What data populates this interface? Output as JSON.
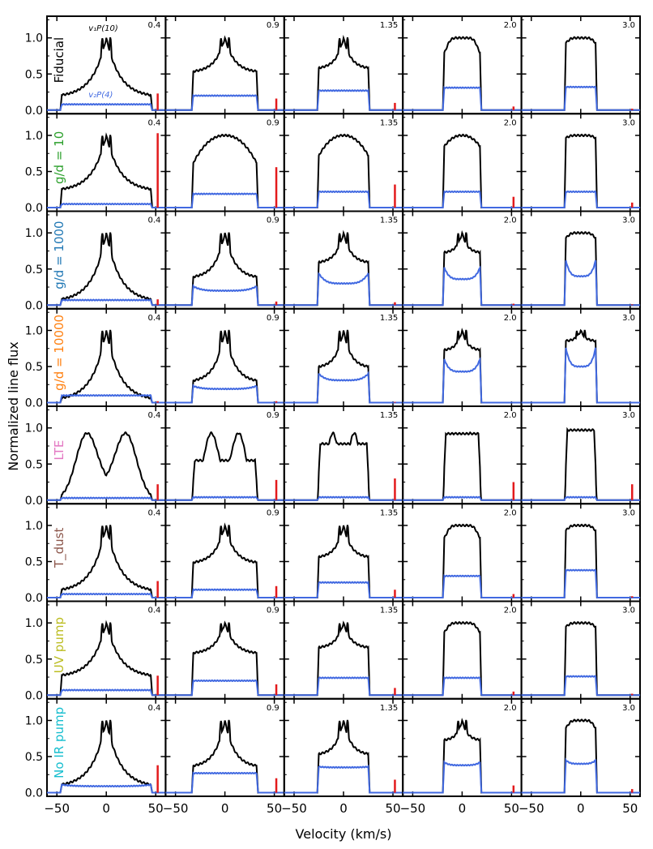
{
  "chart_data": {
    "type": "line",
    "title": "",
    "xlabel": "Velocity (km/s)",
    "ylabel": "Normalized line flux",
    "xlim": [
      -60,
      60
    ],
    "ylim": [
      -0.05,
      1.3
    ],
    "x_ticks": [
      "−50",
      "0",
      "50"
    ],
    "y_ticks": [
      "0.0",
      "0.5",
      "1.0"
    ],
    "grid": false,
    "columns": [
      "0.4",
      "0.9",
      "1.35",
      "2.0",
      "3.0"
    ],
    "line_labels": {
      "black": "v₁P(10)",
      "blue": "v₂P(4)"
    },
    "rows": [
      {
        "label": "Fiducial",
        "label_color": "#000000",
        "black_edge_level": [
          0.18,
          0.52,
          0.57,
          0.76,
          0.92
        ],
        "black_plateau_shape": [
          "peaky",
          "peaky",
          "peaky",
          "flat",
          "flat"
        ],
        "blue_level": [
          0.08,
          0.2,
          0.27,
          0.31,
          0.32
        ],
        "red_bar_height": [
          0.23,
          0.16,
          0.1,
          0.05,
          0.02
        ]
      },
      {
        "label": "g/d = 10",
        "label_color": "#2ca02c",
        "black_edge_level": [
          0.23,
          0.62,
          0.72,
          0.85,
          0.96
        ],
        "black_plateau_shape": [
          "peaky",
          "dome",
          "dome",
          "dome",
          "flat"
        ],
        "blue_level": [
          0.05,
          0.19,
          0.22,
          0.22,
          0.22
        ],
        "red_bar_height": [
          1.03,
          0.56,
          0.32,
          0.15,
          0.07
        ]
      },
      {
        "label": "g/d = 1000",
        "label_color": "#1f77b4",
        "black_edge_level": [
          0.05,
          0.37,
          0.58,
          0.72,
          0.92
        ],
        "black_plateau_shape": [
          "peaky",
          "peaky",
          "peaky",
          "peaky",
          "flat"
        ],
        "blue_level": [
          0.07,
          0.2,
          0.3,
          0.36,
          0.4
        ],
        "blue_edge_level": [
          0.07,
          0.26,
          0.44,
          0.52,
          0.62
        ],
        "red_bar_height": [
          0.08,
          0.05,
          0.04,
          0.02,
          0.01
        ]
      },
      {
        "label": "g/d = 10000",
        "label_color": "#ff7f0e",
        "black_edge_level": [
          0.03,
          0.28,
          0.48,
          0.72,
          0.85
        ],
        "black_plateau_shape": [
          "peaky",
          "peaky",
          "peaky",
          "peaky",
          "peaky"
        ],
        "blue_level": [
          0.1,
          0.19,
          0.31,
          0.43,
          0.5
        ],
        "blue_edge_level": [
          0.1,
          0.23,
          0.4,
          0.6,
          0.76
        ],
        "red_bar_height": [
          0.02,
          0.02,
          0.01,
          0.0,
          0.0
        ]
      },
      {
        "label": "LTE",
        "label_color": "#e377c2",
        "black_edge_level": [
          0.05,
          0.55,
          0.78,
          0.92,
          0.97
        ],
        "black_plateau_shape": [
          "lte",
          "lte",
          "lte",
          "lte",
          "lte"
        ],
        "blue_level": [
          0.03,
          0.04,
          0.04,
          0.04,
          0.04
        ],
        "red_bar_height": [
          0.22,
          0.28,
          0.3,
          0.25,
          0.22
        ]
      },
      {
        "label": "T_dust",
        "label_color": "#8c564b",
        "black_edge_level": [
          0.08,
          0.47,
          0.55,
          0.8,
          0.92
        ],
        "black_plateau_shape": [
          "peaky",
          "peaky",
          "peaky",
          "flat",
          "flat"
        ],
        "blue_level": [
          0.05,
          0.11,
          0.21,
          0.3,
          0.38
        ],
        "red_bar_height": [
          0.23,
          0.16,
          0.11,
          0.05,
          0.02
        ]
      },
      {
        "label": "UV pump",
        "label_color": "#bcbd22",
        "black_edge_level": [
          0.25,
          0.57,
          0.65,
          0.85,
          0.94
        ],
        "black_plateau_shape": [
          "peaky",
          "peaky",
          "peaky",
          "flat",
          "flat"
        ],
        "blue_level": [
          0.07,
          0.2,
          0.24,
          0.24,
          0.26
        ],
        "red_bar_height": [
          0.27,
          0.15,
          0.1,
          0.05,
          0.02
        ]
      },
      {
        "label": "No IR pump",
        "label_color": "#17becf",
        "black_edge_level": [
          0.08,
          0.35,
          0.52,
          0.72,
          0.88
        ],
        "black_plateau_shape": [
          "peaky",
          "peaky",
          "peaky",
          "peaky",
          "flat"
        ],
        "blue_level": [
          0.09,
          0.27,
          0.35,
          0.38,
          0.4
        ],
        "blue_edge_level": [
          0.11,
          0.27,
          0.36,
          0.42,
          0.45
        ],
        "red_bar_height": [
          0.38,
          0.2,
          0.18,
          0.1,
          0.05
        ]
      }
    ],
    "col_half_width_kms": [
      45,
      32,
      25,
      18,
      15
    ],
    "colors": {
      "black_line": "#000000",
      "blue_line": "#4169e1",
      "red_bar": "#e31a1c"
    }
  }
}
